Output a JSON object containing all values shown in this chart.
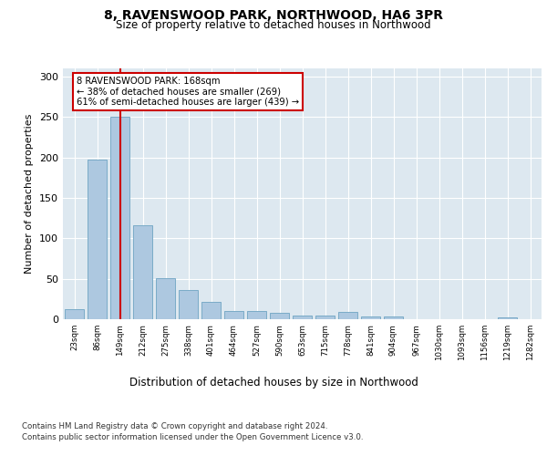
{
  "title": "8, RAVENSWOOD PARK, NORTHWOOD, HA6 3PR",
  "subtitle": "Size of property relative to detached houses in Northwood",
  "xlabel": "Distribution of detached houses by size in Northwood",
  "ylabel": "Number of detached properties",
  "bar_labels": [
    "23sqm",
    "86sqm",
    "149sqm",
    "212sqm",
    "275sqm",
    "338sqm",
    "401sqm",
    "464sqm",
    "527sqm",
    "590sqm",
    "653sqm",
    "715sqm",
    "778sqm",
    "841sqm",
    "904sqm",
    "967sqm",
    "1030sqm",
    "1093sqm",
    "1156sqm",
    "1219sqm",
    "1282sqm"
  ],
  "bar_values": [
    12,
    197,
    250,
    116,
    51,
    36,
    21,
    10,
    10,
    8,
    4,
    5,
    9,
    3,
    3,
    0,
    0,
    0,
    0,
    2,
    0
  ],
  "bar_color": "#adc8e0",
  "bar_edge_color": "#7aabc8",
  "vline_x_index": 2,
  "vline_color": "#cc0000",
  "annotation_text": "8 RAVENSWOOD PARK: 168sqm\n← 38% of detached houses are smaller (269)\n61% of semi-detached houses are larger (439) →",
  "annotation_box_color": "#ffffff",
  "annotation_box_edge": "#cc0000",
  "ylim": [
    0,
    310
  ],
  "yticks": [
    0,
    50,
    100,
    150,
    200,
    250,
    300
  ],
  "bg_color": "#dde8f0",
  "footer_line1": "Contains HM Land Registry data © Crown copyright and database right 2024.",
  "footer_line2": "Contains public sector information licensed under the Open Government Licence v3.0."
}
